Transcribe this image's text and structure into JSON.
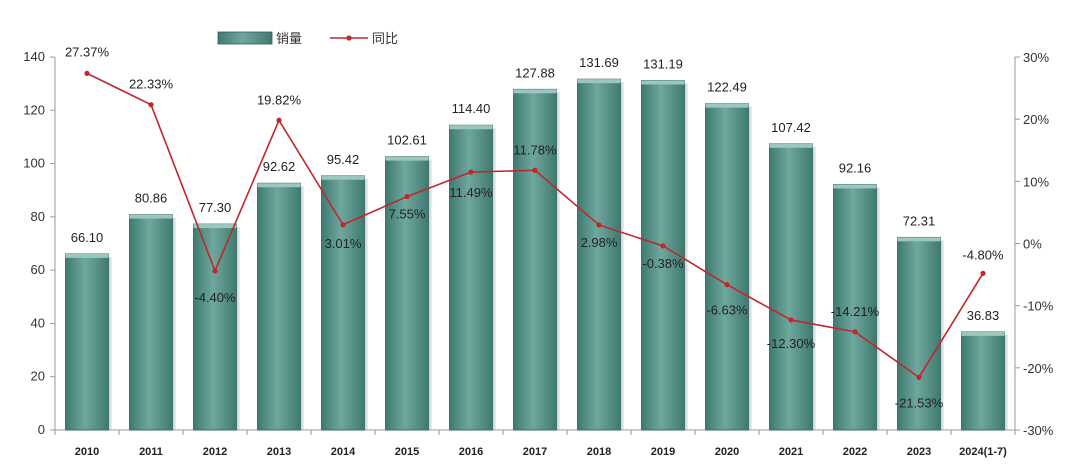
{
  "chart_data": {
    "type": "bar",
    "categories": [
      "2010",
      "2011",
      "2012",
      "2013",
      "2014",
      "2015",
      "2016",
      "2017",
      "2018",
      "2019",
      "2020",
      "2021",
      "2022",
      "2023",
      "2024(1-7)"
    ],
    "series": [
      {
        "name": "销量",
        "type": "bar",
        "axis": "left",
        "values": [
          66.1,
          80.86,
          77.3,
          92.62,
          95.42,
          102.61,
          114.4,
          127.88,
          131.69,
          131.19,
          122.49,
          107.42,
          92.16,
          72.31,
          36.83
        ],
        "labels": [
          "66.10",
          "80.86",
          "77.30",
          "92.62",
          "95.42",
          "102.61",
          "114.40",
          "127.88",
          "131.69",
          "131.19",
          "122.49",
          "107.42",
          "92.16",
          "72.31",
          "36.83"
        ]
      },
      {
        "name": "同比",
        "type": "line",
        "axis": "right",
        "values": [
          27.37,
          22.33,
          -4.4,
          19.82,
          3.01,
          7.55,
          11.49,
          11.78,
          2.98,
          -0.38,
          -6.63,
          -12.3,
          -14.21,
          -21.53,
          -4.8
        ],
        "labels": [
          "27.37%",
          "22.33%",
          "-4.40%",
          "19.82%",
          "3.01%",
          "7.55%",
          "11.49%",
          "11.78%",
          "2.98%",
          "-0.38%",
          "-6.63%",
          "-12.30%",
          "-14.21%",
          "-21.53%",
          "-4.80%"
        ]
      }
    ],
    "y_left": {
      "range": [
        0,
        140
      ],
      "ticks": [
        "0",
        "20",
        "40",
        "60",
        "80",
        "100",
        "120",
        "140"
      ]
    },
    "y_right": {
      "range": [
        -30,
        30
      ],
      "ticks": [
        "-30%",
        "-20%",
        "-10%",
        "0%",
        "10%",
        "20%",
        "30%"
      ]
    },
    "legend_position": "top-center",
    "grid": false,
    "colors": {
      "bar": "#6fa79e",
      "bar_dark": "#3f7a70",
      "line": "#c0272d",
      "axis": "#999999"
    }
  }
}
